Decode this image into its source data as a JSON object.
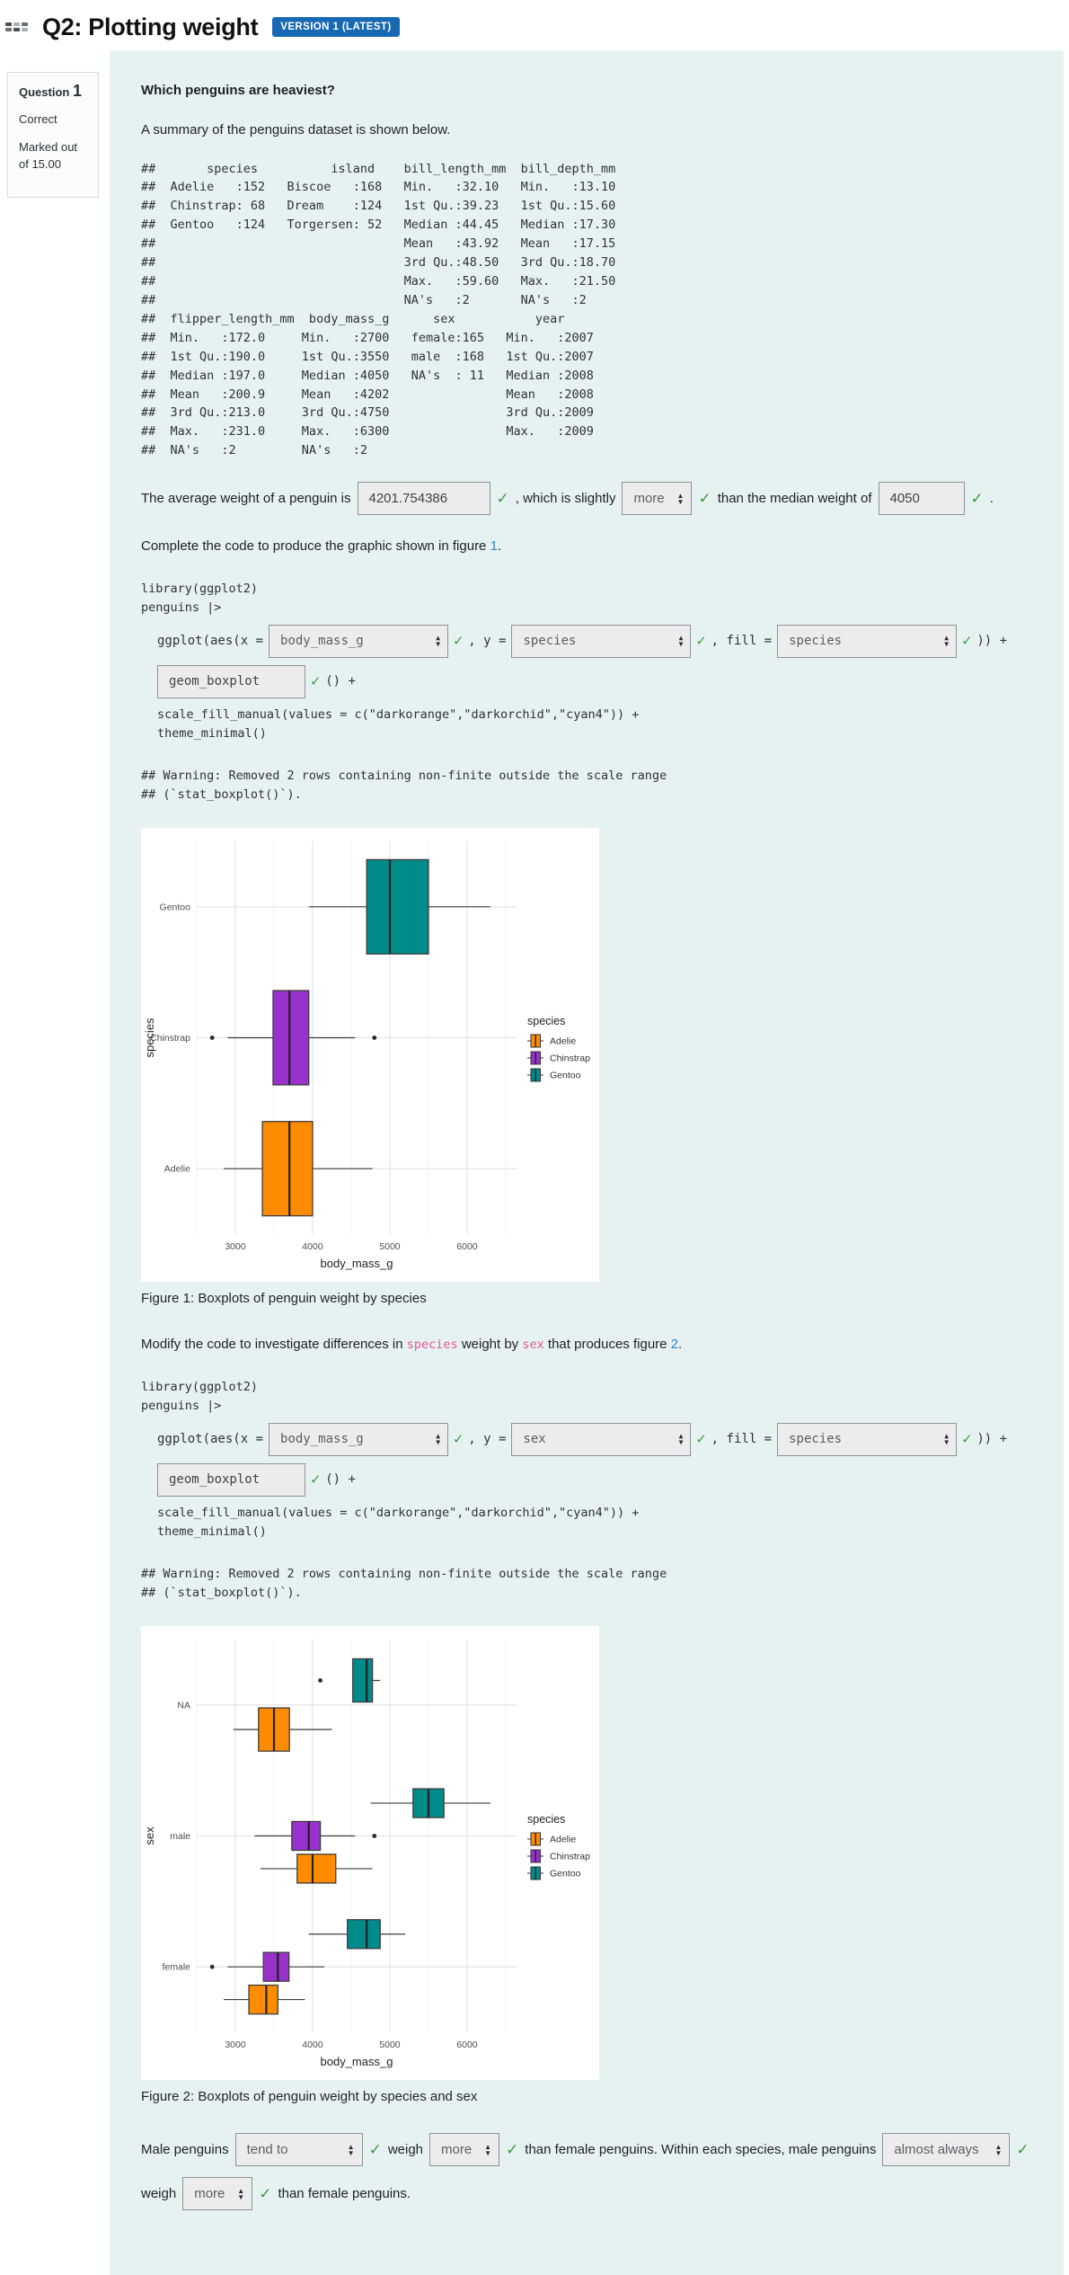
{
  "header": {
    "title": "Q2: Plotting weight",
    "badge": "VERSION 1 (LATEST)"
  },
  "question_info": {
    "label": "Question",
    "number": "1",
    "state": "Correct",
    "grade": "Marked out of 15.00"
  },
  "icons": {
    "check": "✓",
    "up": "▲",
    "down": "▼"
  },
  "colors": {
    "panel_bg": "#e6f2f2",
    "badge_blue": "#1769b3",
    "link_blue": "#2e86c8",
    "check_green": "#3d9a47",
    "code_pink": "#e8558f",
    "adelie_orange": "#FF8C00",
    "chinstrap_purple": "#9932CC",
    "gentoo_teal": "#008B8B"
  },
  "content": {
    "heading": "Which penguins are heaviest?",
    "summary_intro": "A summary of the penguins dataset is shown below.",
    "summary_text": "##       species          island    bill_length_mm  bill_depth_mm\n##  Adelie   :152   Biscoe   :168   Min.   :32.10   Min.   :13.10\n##  Chinstrap: 68   Dream    :124   1st Qu.:39.23   1st Qu.:15.60\n##  Gentoo   :124   Torgersen: 52   Median :44.45   Median :17.30\n##                                  Mean   :43.92   Mean   :17.15\n##                                  3rd Qu.:48.50   3rd Qu.:18.70\n##                                  Max.   :59.60   Max.   :21.50\n##                                  NA's   :2       NA's   :2\n##  flipper_length_mm  body_mass_g      sex           year\n##  Min.   :172.0     Min.   :2700   female:165   Min.   :2007\n##  1st Qu.:190.0     1st Qu.:3550   male  :168   1st Qu.:2007\n##  Median :197.0     Median :4050   NA's  : 11   Median :2008\n##  Mean   :200.9     Mean   :4202                Mean   :2008\n##  3rd Qu.:213.0     3rd Qu.:4750                3rd Qu.:2009\n##  Max.   :231.0     Max.   :6300                Max.   :2009\n##  NA's   :2         NA's   :2",
    "avg": {
      "p1": "The average weight of a penguin is",
      "input1": "4201.754386",
      "p2": ", which is slightly",
      "dd1": "more",
      "p3": "than the median weight of",
      "input2": "4050",
      "p4": "."
    },
    "complete_para": {
      "p1": "Complete the code to produce the graphic shown in figure",
      "link": "1",
      "p2": "."
    },
    "code1": {
      "head": "library(ggplot2)\npenguins |>",
      "ggplot_prefix": "ggplot(aes(x =",
      "x_value": "body_mass_g",
      "y_label": ", y =",
      "y_value": "species",
      "fill_label": ", fill =",
      "fill_value": "species",
      "close": ")) +",
      "geom_value": "geom_boxplot",
      "geom_suffix": "() +",
      "tail": "scale_fill_manual(values = c(\"darkorange\",\"darkorchid\",\"cyan4\")) +\ntheme_minimal()"
    },
    "warning": "## Warning: Removed 2 rows containing non-finite outside the scale range\n## (`stat_boxplot()`).",
    "fig1_caption": "Figure 1: Boxplots of penguin weight by species",
    "modify_para": {
      "p1": "Modify the code to investigate differences in",
      "code_a": "species",
      "p2": "weight by",
      "code_b": "sex",
      "p3": "that produces figure",
      "link": "2",
      "p4": "."
    },
    "code2": {
      "head": "library(ggplot2)\npenguins |>",
      "ggplot_prefix": "ggplot(aes(x =",
      "x_value": "body_mass_g",
      "y_label": ", y =",
      "y_value": "sex",
      "fill_label": ", fill =",
      "fill_value": "species",
      "close": ")) +",
      "geom_value": "geom_boxplot",
      "geom_suffix": "() +",
      "tail": "scale_fill_manual(values = c(\"darkorange\",\"darkorchid\",\"cyan4\")) +\ntheme_minimal()"
    },
    "fig2_caption": "Figure 2: Boxplots of penguin weight by species and sex",
    "bottom": {
      "p1": "Male penguins",
      "dd1": "tend to",
      "p2": "weigh",
      "dd2": "more",
      "p3": "than female penguins. Within each species, male penguins",
      "dd3": "almost always",
      "p4": "weigh",
      "dd4": "more",
      "p5": "than female penguins."
    }
  },
  "chart_data": [
    {
      "type": "boxplot",
      "orientation": "horizontal",
      "xlabel": "body_mass_g",
      "ylabel": "species",
      "x_ticks": [
        3000,
        4000,
        5000,
        6000
      ],
      "xlim": [
        2500,
        6640
      ],
      "grid": true,
      "legend_position": "right",
      "legend": {
        "title": "species",
        "entries": [
          {
            "label": "Adelie",
            "color": "#FF8C00"
          },
          {
            "label": "Chinstrap",
            "color": "#9932CC"
          },
          {
            "label": "Gentoo",
            "color": "#008B8B"
          }
        ]
      },
      "rows": [
        {
          "category": "Gentoo",
          "boxes": [
            {
              "species": "Gentoo",
              "color": "#008B8B",
              "min": 3950,
              "q1": 4700,
              "median": 5000,
              "q3": 5500,
              "max": 6300,
              "outliers": []
            }
          ]
        },
        {
          "category": "Chinstrap",
          "boxes": [
            {
              "species": "Chinstrap",
              "color": "#9932CC",
              "min": 2900,
              "q1": 3488,
              "median": 3700,
              "q3": 3950,
              "max": 4550,
              "outliers": [
                2700,
                4800
              ]
            }
          ]
        },
        {
          "category": "Adelie",
          "boxes": [
            {
              "species": "Adelie",
              "color": "#FF8C00",
              "min": 2850,
              "q1": 3350,
              "median": 3700,
              "q3": 4000,
              "max": 4775,
              "outliers": []
            }
          ]
        }
      ]
    },
    {
      "type": "boxplot",
      "orientation": "horizontal",
      "xlabel": "body_mass_g",
      "ylabel": "sex",
      "x_ticks": [
        3000,
        4000,
        5000,
        6000
      ],
      "xlim": [
        2500,
        6640
      ],
      "grid": true,
      "legend_position": "right",
      "legend": {
        "title": "species",
        "entries": [
          {
            "label": "Adelie",
            "color": "#FF8C00"
          },
          {
            "label": "Chinstrap",
            "color": "#9932CC"
          },
          {
            "label": "Gentoo",
            "color": "#008B8B"
          }
        ]
      },
      "rows": [
        {
          "category": "NA",
          "boxes": [
            {
              "species": "Gentoo",
              "color": "#008B8B",
              "min": 4520,
              "q1": 4520,
              "median": 4700,
              "q3": 4775,
              "max": 4875,
              "outliers": [
                4100
              ]
            },
            {
              "species": "Adelie",
              "color": "#FF8C00",
              "min": 2975,
              "q1": 3300,
              "median": 3500,
              "q3": 3700,
              "max": 4250,
              "outliers": []
            }
          ]
        },
        {
          "category": "male",
          "boxes": [
            {
              "species": "Gentoo",
              "color": "#008B8B",
              "min": 4750,
              "q1": 5300,
              "median": 5500,
              "q3": 5700,
              "max": 6300,
              "outliers": []
            },
            {
              "species": "Chinstrap",
              "color": "#9932CC",
              "min": 3250,
              "q1": 3731,
              "median": 3950,
              "q3": 4100,
              "max": 4550,
              "outliers": [
                4800
              ]
            },
            {
              "species": "Adelie",
              "color": "#FF8C00",
              "min": 3325,
              "q1": 3800,
              "median": 4000,
              "q3": 4300,
              "max": 4775,
              "outliers": []
            }
          ]
        },
        {
          "category": "female",
          "boxes": [
            {
              "species": "Gentoo",
              "color": "#008B8B",
              "min": 3950,
              "q1": 4450,
              "median": 4700,
              "q3": 4875,
              "max": 5200,
              "outliers": []
            },
            {
              "species": "Chinstrap",
              "color": "#9932CC",
              "min": 2900,
              "q1": 3363,
              "median": 3550,
              "q3": 3694,
              "max": 4150,
              "outliers": [
                2700
              ]
            },
            {
              "species": "Adelie",
              "color": "#FF8C00",
              "min": 2850,
              "q1": 3175,
              "median": 3400,
              "q3": 3550,
              "max": 3900,
              "outliers": []
            }
          ]
        }
      ]
    }
  ]
}
